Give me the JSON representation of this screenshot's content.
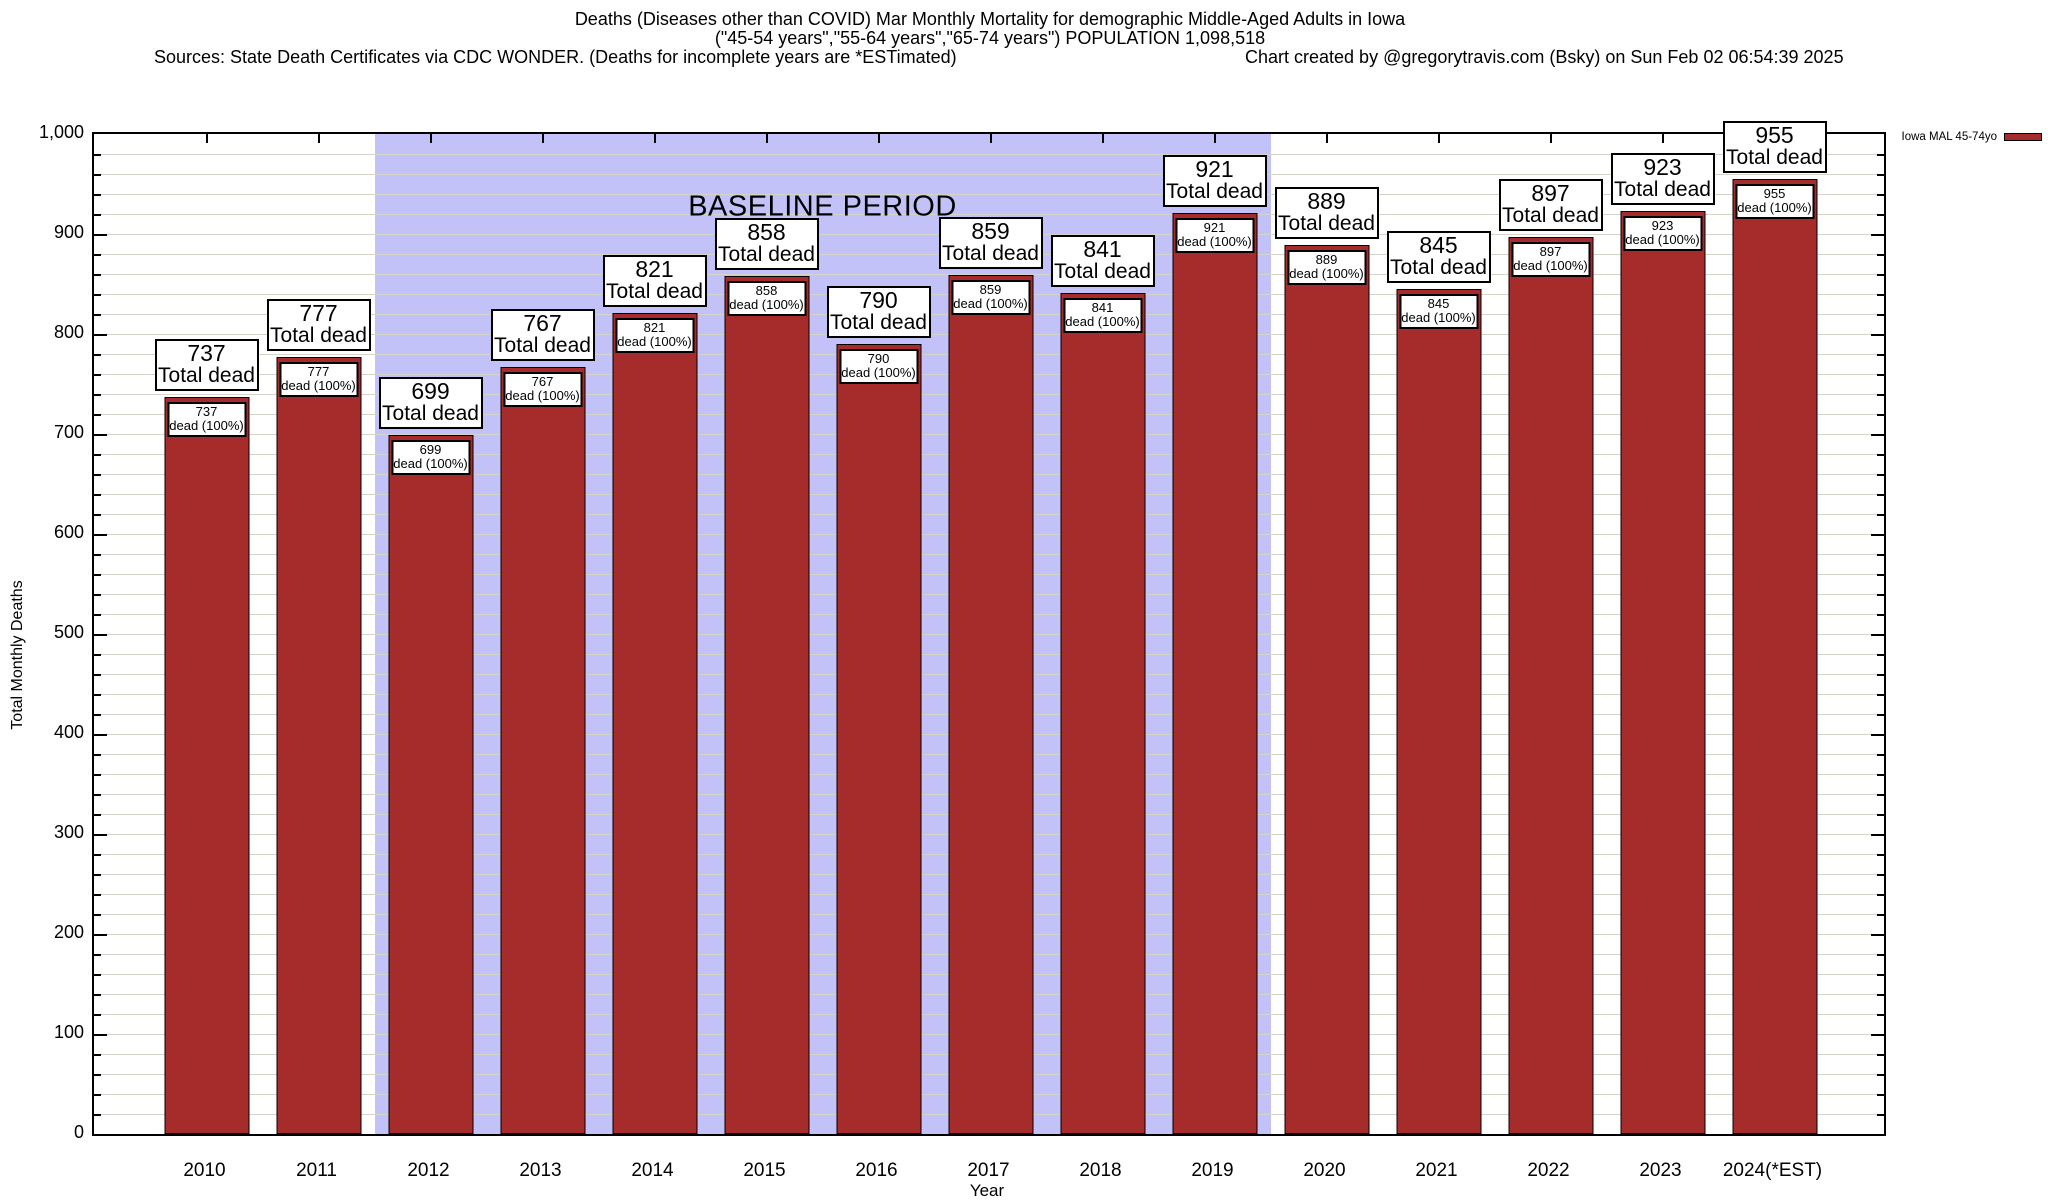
{
  "header": {
    "title_line1": "Deaths (Diseases other than COVID) Mar Monthly Mortality for demographic Middle-Aged Adults in Iowa",
    "title_line2": "(\"45-54 years\",\"55-64 years\",\"65-74 years\") POPULATION 1,098,518",
    "sources": "Sources: State Death Certificates via CDC WONDER. (Deaths for incomplete years are *ESTimated)",
    "credit": "Chart created by @gregorytravis.com (Bsky) on Sun Feb 02 06:54:39 2025"
  },
  "legend": {
    "label": "Iowa MAL 45-74yo",
    "swatch_color": "#a62c2c"
  },
  "annotations": {
    "baseline_label": "BASELINE PERIOD",
    "baseline_from": "2012",
    "baseline_to": "2019"
  },
  "axes": {
    "x_label": "Year",
    "y_label": "Total Monthly Deaths",
    "y_tick_labels": [
      "0",
      "100",
      "200",
      "300",
      "400",
      "500",
      "600",
      "700",
      "800",
      "900",
      "1,000"
    ]
  },
  "bar_labels": {
    "outer_caption": "Total dead",
    "inner_caption": "dead (100%)"
  },
  "chart_data": {
    "type": "bar",
    "title": "Deaths (Diseases other than COVID) Mar Monthly Mortality for demographic Middle-Aged Adults in Iowa",
    "xlabel": "Year",
    "ylabel": "Total Monthly Deaths",
    "ylim": [
      0,
      1000
    ],
    "y_major_step": 100,
    "y_minor_step": 20,
    "grid": true,
    "legend_position": "top-right-outside",
    "categories": [
      "2010",
      "2011",
      "2012",
      "2013",
      "2014",
      "2015",
      "2016",
      "2017",
      "2018",
      "2019",
      "2020",
      "2021",
      "2022",
      "2023",
      "2024(*EST)"
    ],
    "series": [
      {
        "name": "Iowa MAL 45-74yo",
        "values": [
          737,
          777,
          699,
          767,
          821,
          858,
          790,
          859,
          841,
          921,
          889,
          845,
          897,
          923,
          955
        ],
        "percent_labels": [
          "100%",
          "100%",
          "100%",
          "100%",
          "100%",
          "100%",
          "100%",
          "100%",
          "100%",
          "100%",
          "100%",
          "100%",
          "100%",
          "100%",
          "100%"
        ]
      }
    ],
    "baseline_band": {
      "from_year": "2012",
      "to_year": "2019"
    },
    "colors": {
      "bar_fill": "#a62c2c",
      "band_fill": "#c2c2f9",
      "gridline": "#d4d4ca"
    }
  }
}
